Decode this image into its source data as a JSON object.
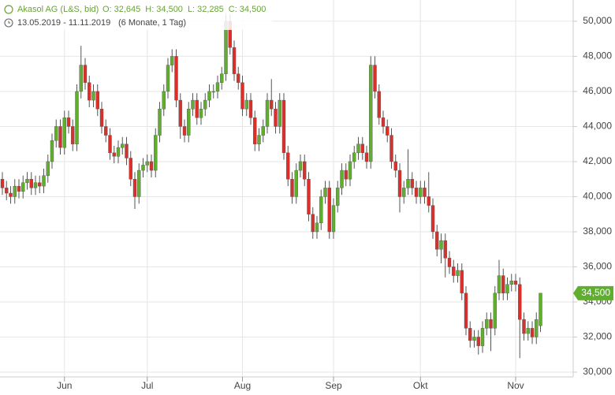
{
  "header": {
    "title": "Akasol AG (L&S, bid)",
    "quote": [
      {
        "label": "O:",
        "text": "32,645"
      },
      {
        "label": "H:",
        "text": "34,500"
      },
      {
        "label": "L:",
        "text": "32,285"
      },
      {
        "label": "C:",
        "text": "34,500"
      }
    ],
    "range": "13.05.2019 - 11.11.2019",
    "period": "(6 Monate, 1 Tag)"
  },
  "chart_data": {
    "type": "candlestick",
    "up_color": "#5fae2e",
    "down_color": "#d9302c",
    "wick_color": "#555555",
    "grid": true,
    "categories": [
      null,
      null,
      null,
      null,
      null,
      null,
      null,
      null,
      null,
      null,
      null,
      null,
      null,
      null,
      null,
      "Jun",
      null,
      null,
      null,
      null,
      null,
      null,
      null,
      null,
      null,
      null,
      null,
      null,
      null,
      null,
      null,
      null,
      null,
      null,
      null,
      "Jul",
      null,
      null,
      null,
      null,
      null,
      null,
      null,
      null,
      null,
      null,
      null,
      null,
      null,
      null,
      null,
      null,
      null,
      null,
      null,
      null,
      null,
      null,
      "Aug",
      null,
      null,
      null,
      null,
      null,
      null,
      null,
      null,
      null,
      null,
      null,
      null,
      null,
      null,
      null,
      null,
      null,
      null,
      null,
      null,
      null,
      "Sep",
      null,
      null,
      null,
      null,
      null,
      null,
      null,
      null,
      null,
      null,
      null,
      null,
      null,
      null,
      null,
      null,
      null,
      null,
      null,
      null,
      "Okt",
      null,
      null,
      null,
      null,
      null,
      null,
      null,
      null,
      null,
      null,
      null,
      null,
      null,
      null,
      null,
      null,
      null,
      null,
      null,
      null,
      null,
      null,
      "Nov",
      null,
      null,
      null,
      null,
      null,
      null
    ],
    "open": [
      41000,
      40500,
      40200,
      40000,
      40600,
      40300,
      40800,
      41000,
      40500,
      40800,
      40600,
      41200,
      42000,
      43200,
      44000,
      42800,
      44500,
      44000,
      43000,
      46000,
      47500,
      46500,
      45500,
      46000,
      45000,
      44000,
      43500,
      42500,
      42300,
      42800,
      43000,
      42200,
      41000,
      40000,
      41500,
      41800,
      42000,
      41500,
      43500,
      45000,
      46000,
      47500,
      48000,
      45500,
      44000,
      43500,
      45000,
      45500,
      44500,
      45000,
      45500,
      46000,
      46000,
      46500,
      47000,
      50000,
      48500,
      47000,
      46500,
      45000,
      45500,
      44500,
      43000,
      43500,
      44000,
      45500,
      45000,
      44000,
      45500,
      42500,
      41000,
      40000,
      41500,
      42000,
      41000,
      39000,
      38000,
      38500,
      40000,
      40500,
      38000,
      39500,
      40500,
      41500,
      41000,
      42000,
      42500,
      43000,
      42500,
      42000,
      47500,
      46000,
      44500,
      44000,
      43500,
      42000,
      41500,
      40000,
      40500,
      41000,
      40500,
      40000,
      40500,
      40000,
      39500,
      38000,
      37000,
      37500,
      36500,
      36000,
      35500,
      35800,
      34500,
      32500,
      31800,
      32000,
      31500,
      32500,
      33000,
      32500,
      34500,
      35500,
      34500,
      35000,
      35200,
      35000,
      33000,
      32200,
      32500,
      32000,
      32645
    ],
    "high": [
      41400,
      40900,
      40600,
      41000,
      41000,
      41200,
      41400,
      41400,
      41200,
      41200,
      41600,
      42400,
      43600,
      44400,
      44400,
      44900,
      44900,
      44400,
      46400,
      48600,
      47900,
      46900,
      46400,
      46400,
      45400,
      44400,
      43900,
      42900,
      43200,
      43400,
      43400,
      42600,
      41400,
      41900,
      42200,
      42400,
      42400,
      43900,
      45400,
      46400,
      47900,
      48400,
      48400,
      45900,
      44400,
      45400,
      45900,
      45900,
      45400,
      45900,
      46400,
      46400,
      46900,
      47400,
      50400,
      50400,
      48900,
      47400,
      46900,
      45900,
      45900,
      44900,
      43900,
      44400,
      45900,
      46700,
      45400,
      45900,
      45900,
      42900,
      41400,
      41900,
      42400,
      42400,
      41400,
      39400,
      38900,
      40400,
      40900,
      40900,
      39900,
      40900,
      41900,
      41900,
      42400,
      42900,
      43400,
      43400,
      42900,
      48000,
      48000,
      46400,
      44900,
      44400,
      43900,
      42400,
      41900,
      40900,
      42700,
      41400,
      40900,
      40900,
      40900,
      41400,
      39900,
      38400,
      37900,
      37900,
      36900,
      36400,
      36200,
      36200,
      34900,
      32900,
      32400,
      32400,
      32900,
      33400,
      33400,
      34900,
      36400,
      35900,
      35400,
      35600,
      35600,
      35400,
      33400,
      32900,
      32900,
      33400,
      34500
    ],
    "low": [
      40100,
      39800,
      39600,
      39600,
      39900,
      39900,
      40400,
      40100,
      40100,
      40200,
      40200,
      40800,
      41600,
      42800,
      42400,
      42400,
      43600,
      42600,
      42600,
      45600,
      46100,
      45100,
      45100,
      44600,
      43600,
      43100,
      42100,
      41900,
      41900,
      42400,
      41800,
      40600,
      39300,
      39600,
      41100,
      41400,
      41100,
      41100,
      43100,
      44600,
      45600,
      47100,
      45100,
      43300,
      43100,
      43100,
      44600,
      44100,
      44100,
      44600,
      45100,
      45600,
      45600,
      46100,
      46600,
      48100,
      46600,
      46100,
      44600,
      44600,
      44100,
      42600,
      42600,
      43100,
      43600,
      44600,
      43600,
      43600,
      42100,
      40600,
      39600,
      39600,
      41100,
      40600,
      38600,
      37600,
      37600,
      38100,
      39600,
      37600,
      37600,
      39100,
      40100,
      40600,
      40600,
      41600,
      42100,
      42100,
      41600,
      41600,
      45600,
      44100,
      43600,
      43100,
      41600,
      41100,
      39100,
      39600,
      40100,
      40100,
      39600,
      39600,
      39600,
      39100,
      37600,
      36600,
      36200,
      35400,
      35600,
      35100,
      35100,
      34100,
      32100,
      31400,
      31400,
      31000,
      31100,
      32100,
      31200,
      32100,
      34100,
      34100,
      34100,
      34600,
      34600,
      30800,
      31800,
      31800,
      31600,
      31600,
      32285
    ],
    "close": [
      40500,
      40200,
      40000,
      40600,
      40300,
      40800,
      41000,
      40500,
      40800,
      40600,
      41200,
      42000,
      43200,
      44000,
      42800,
      44500,
      44000,
      43000,
      46000,
      47500,
      46500,
      45500,
      46000,
      45000,
      44000,
      43500,
      42500,
      42300,
      42800,
      43000,
      42200,
      41000,
      40000,
      41500,
      41800,
      42000,
      41500,
      43500,
      45000,
      46000,
      47500,
      48000,
      45500,
      44000,
      43500,
      45000,
      45500,
      44500,
      45000,
      45500,
      46000,
      46000,
      46500,
      47000,
      50000,
      48500,
      47000,
      46500,
      45000,
      45500,
      44500,
      43000,
      43500,
      44000,
      45500,
      45000,
      44000,
      45500,
      42500,
      41000,
      40000,
      41500,
      42000,
      41000,
      39000,
      38000,
      38500,
      40000,
      40500,
      38000,
      39500,
      40500,
      41500,
      41000,
      42000,
      42500,
      43000,
      42500,
      42000,
      47500,
      46000,
      44500,
      44000,
      43500,
      42000,
      41500,
      40000,
      40500,
      41000,
      40500,
      40000,
      40500,
      40000,
      39500,
      38000,
      37000,
      37500,
      36500,
      36000,
      35500,
      35800,
      34500,
      32500,
      31800,
      32000,
      31500,
      32500,
      33000,
      32500,
      34500,
      35500,
      34500,
      35000,
      35200,
      35000,
      33000,
      32200,
      32500,
      32000,
      33000,
      34500
    ],
    "ylim": [
      29730,
      51210
    ],
    "yticks": [
      {
        "value": 30000,
        "label": "30,000"
      },
      {
        "value": 32000,
        "label": "32,000"
      },
      {
        "value": 34000,
        "label": "34,000"
      },
      {
        "value": 36000,
        "label": "36,000"
      },
      {
        "value": 38000,
        "label": "38,000"
      },
      {
        "value": 40000,
        "label": "40,000"
      },
      {
        "value": 42000,
        "label": "42,000"
      },
      {
        "value": 44000,
        "label": "44,000"
      },
      {
        "value": 46000,
        "label": "46,000"
      },
      {
        "value": 48000,
        "label": "48,000"
      },
      {
        "value": 50000,
        "label": "50,000"
      }
    ]
  }
}
